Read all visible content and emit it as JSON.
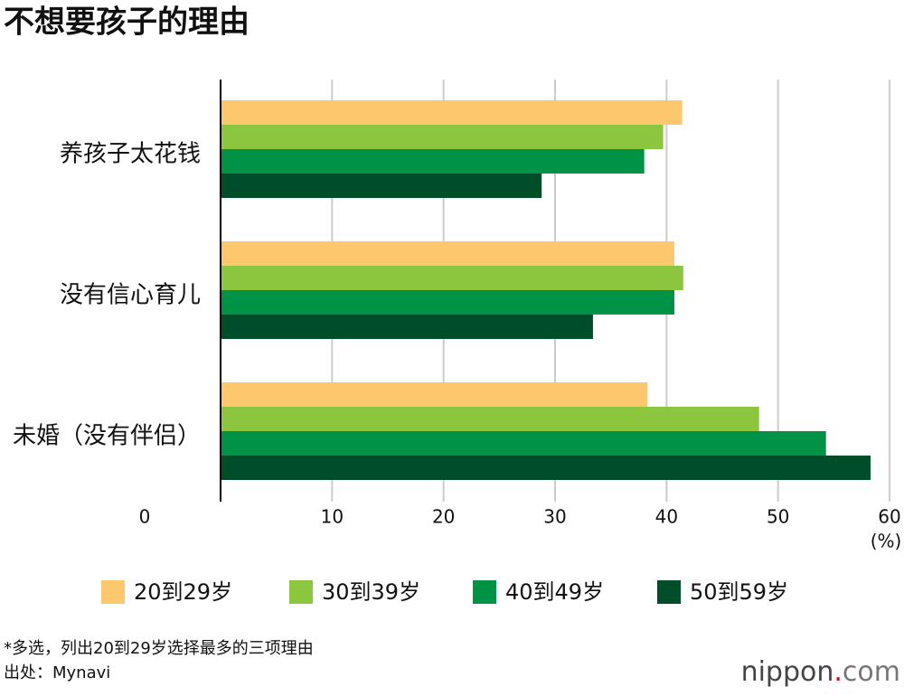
{
  "chart_data": {
    "type": "hbar",
    "title": "不想要孩子的理由",
    "categories": [
      "养孩子太花钱",
      "没有信心育儿",
      "未婚（没有伴侣）"
    ],
    "series": [
      {
        "name": "20到29岁",
        "color": "#fdc86d",
        "values": [
          41.4,
          40.7,
          38.3
        ]
      },
      {
        "name": "30到39岁",
        "color": "#8cc63f",
        "values": [
          39.7,
          41.5,
          48.3
        ]
      },
      {
        "name": "40到49岁",
        "color": "#009245",
        "values": [
          38.0,
          40.7,
          54.3
        ]
      },
      {
        "name": "50到59岁",
        "color": "#004d2a",
        "values": [
          28.8,
          33.4,
          58.3
        ]
      }
    ],
    "xlim": [
      0,
      60
    ],
    "xticks": [
      0,
      10,
      20,
      30,
      40,
      50,
      60
    ],
    "x_unit": "(%)",
    "grid": true,
    "notes": [
      "*多选，列出20到29岁选择最多的三项理由",
      "出处：Mynavi"
    ],
    "logo": {
      "name": "nippon",
      "dot": ".",
      "domain": "com"
    }
  }
}
